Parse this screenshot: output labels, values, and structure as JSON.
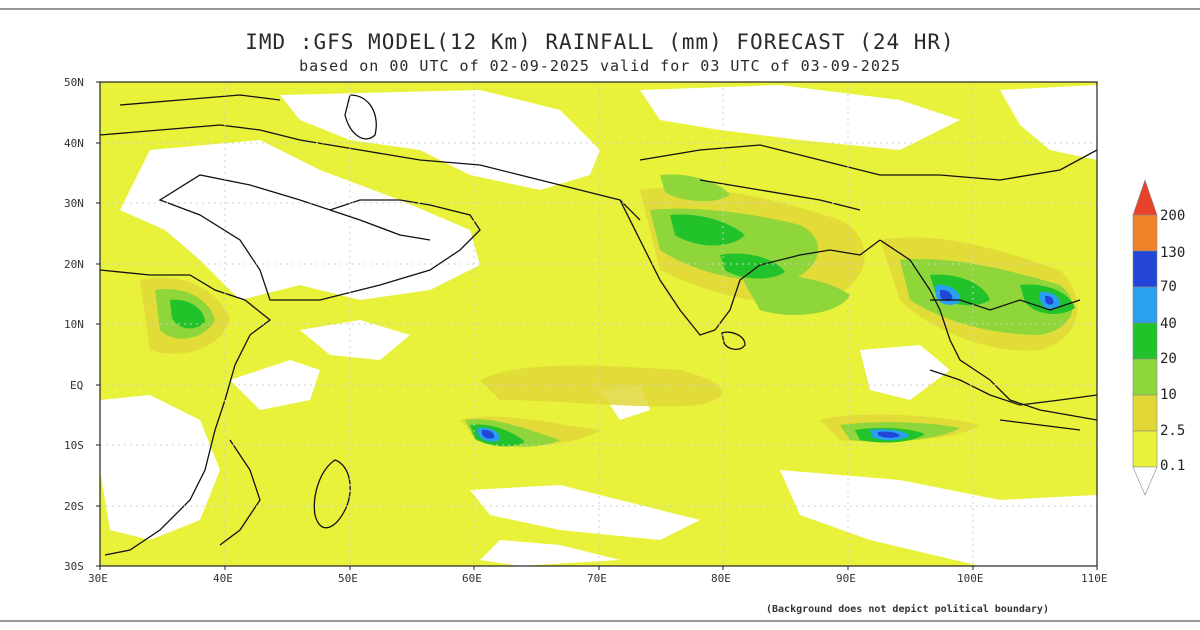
{
  "title": "IMD :GFS MODEL(12 Km) RAINFALL (mm) FORECAST (24 HR)",
  "subtitle": "based on 00 UTC of 02-09-2025 valid for 03 UTC of 03-09-2025",
  "footnote": "(Background does not depict political boundary)",
  "lat_labels": [
    "50N",
    "40N",
    "30N",
    "20N",
    "10N",
    "EQ",
    "10S",
    "20S",
    "30S"
  ],
  "lon_labels": [
    "30E",
    "40E",
    "50E",
    "60E",
    "70E",
    "80E",
    "90E",
    "100E",
    "110E"
  ],
  "legend": {
    "thresholds": [
      "200",
      "130",
      "70",
      "40",
      "20",
      "10",
      "2.5",
      "0.1"
    ],
    "colors": [
      "#e8432a",
      "#f0822a",
      "#2346d8",
      "#2aa0f0",
      "#22c22a",
      "#8ed63a",
      "#e1d838",
      "#e8f23a"
    ]
  }
}
